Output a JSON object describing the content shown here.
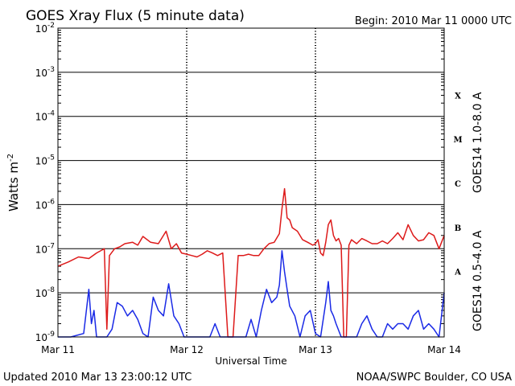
{
  "chart_data": {
    "type": "line",
    "title": "GOES Xray Flux (5 minute data)",
    "begin_label": "Begin:  2010 Mar 11 0000 UTC",
    "xlabel": "Universal Time",
    "ylabel_main": "Watts m",
    "ylabel_exp": "-2",
    "footer_left": "Updated 2010 Mar 13 23:00:12 UTC",
    "footer_right": "NOAA/SWPC Boulder, CO USA",
    "x_ticks": [
      "Mar 11",
      "Mar 12",
      "Mar 13",
      "Mar 14"
    ],
    "y_scale": "log",
    "ylim": [
      "1e-9",
      "1e-2"
    ],
    "y_ticks": [
      {
        "base": "10",
        "exp": "-2"
      },
      {
        "base": "10",
        "exp": "-3"
      },
      {
        "base": "10",
        "exp": "-4"
      },
      {
        "base": "10",
        "exp": "-5"
      },
      {
        "base": "10",
        "exp": "-6"
      },
      {
        "base": "10",
        "exp": "-7"
      },
      {
        "base": "10",
        "exp": "-8"
      },
      {
        "base": "10",
        "exp": "-9"
      }
    ],
    "flare_classes": [
      "X",
      "M",
      "C",
      "B",
      "A"
    ],
    "grid": true,
    "series": [
      {
        "name": "GOES14 1.0-8.0 A",
        "color": "#dd1a1a",
        "x": [
          0,
          0.08,
          0.16,
          0.24,
          0.3,
          0.36,
          0.38,
          0.4,
          0.44,
          0.48,
          0.52,
          0.58,
          0.62,
          0.66,
          0.72,
          0.78,
          0.84,
          0.88,
          0.92,
          0.96,
          1.0,
          1.04,
          1.08,
          1.12,
          1.16,
          1.2,
          1.24,
          1.28,
          1.32,
          1.36,
          1.4,
          1.44,
          1.48,
          1.52,
          1.56,
          1.6,
          1.64,
          1.68,
          1.72,
          1.74,
          1.76,
          1.78,
          1.8,
          1.82,
          1.86,
          1.9,
          1.94,
          1.98,
          2.0,
          2.02,
          2.04,
          2.06,
          2.08,
          2.1,
          2.12,
          2.14,
          2.16,
          2.18,
          2.2,
          2.22,
          2.24,
          2.26,
          2.28,
          2.32,
          2.36,
          2.4,
          2.44,
          2.48,
          2.52,
          2.56,
          2.6,
          2.64,
          2.68,
          2.72,
          2.76,
          2.8,
          2.84,
          2.88,
          2.92,
          2.96,
          3.0
        ],
        "y": [
          "4.0e-8",
          "5.0e-8",
          "6.5e-8",
          "6.0e-8",
          "8.0e-8",
          "1.0e-7",
          "1.5e-9",
          "7.0e-8",
          "1.0e-7",
          "1.1e-7",
          "1.3e-7",
          "1.4e-7",
          "1.2e-7",
          "1.9e-7",
          "1.4e-7",
          "1.3e-7",
          "2.5e-7",
          "1.0e-7",
          "1.3e-7",
          "8.0e-8",
          "7.5e-8",
          "7.0e-8",
          "6.5e-8",
          "7.5e-8",
          "9.0e-8",
          "8.0e-8",
          "7.0e-8",
          "8.0e-8",
          "1.0e-9",
          "1.0e-9",
          "7.0e-8",
          "7.0e-8",
          "7.5e-8",
          "7.0e-8",
          "7.0e-8",
          "1.0e-7",
          "1.3e-7",
          "1.4e-7",
          "2.2e-7",
          "8.0e-7",
          "2.3e-6",
          "5.0e-7",
          "4.5e-7",
          "3.0e-7",
          "2.5e-7",
          "1.6e-7",
          "1.4e-7",
          "1.2e-7",
          "1.3e-7",
          "1.6e-7",
          "8.0e-8",
          "7.0e-8",
          "1.4e-7",
          "3.5e-7",
          "4.5e-7",
          "2.0e-7",
          "1.5e-7",
          "1.7e-7",
          "1.2e-7",
          "1.0e-9",
          "1.0e-9",
          "1.2e-7",
          "1.6e-7",
          "1.3e-7",
          "1.7e-7",
          "1.5e-7",
          "1.3e-7",
          "1.3e-7",
          "1.5e-7",
          "1.3e-7",
          "1.7e-7",
          "2.3e-7",
          "1.6e-7",
          "3.5e-7",
          "2.0e-7",
          "1.5e-7",
          "1.6e-7",
          "2.3e-7",
          "2.0e-7",
          "1.0e-7",
          "2.0e-7"
        ]
      },
      {
        "name": "GOES14 0.5-4.0 A",
        "color": "#1a2ae6",
        "x": [
          0,
          0.1,
          0.2,
          0.24,
          0.26,
          0.28,
          0.3,
          0.34,
          0.38,
          0.42,
          0.46,
          0.5,
          0.54,
          0.58,
          0.62,
          0.66,
          0.7,
          0.74,
          0.78,
          0.82,
          0.86,
          0.9,
          0.94,
          0.98,
          1.02,
          1.06,
          1.1,
          1.14,
          1.18,
          1.22,
          1.26,
          1.3,
          1.34,
          1.38,
          1.42,
          1.46,
          1.5,
          1.54,
          1.58,
          1.62,
          1.66,
          1.7,
          1.72,
          1.74,
          1.76,
          1.78,
          1.8,
          1.84,
          1.88,
          1.92,
          1.96,
          2.0,
          2.04,
          2.08,
          2.1,
          2.12,
          2.14,
          2.16,
          2.2,
          2.24,
          2.28,
          2.32,
          2.36,
          2.4,
          2.44,
          2.48,
          2.52,
          2.56,
          2.6,
          2.64,
          2.68,
          2.72,
          2.76,
          2.8,
          2.84,
          2.88,
          2.92,
          2.96,
          3.0
        ],
        "y": [
          "1.0e-9",
          "1.0e-9",
          "1.2e-9",
          "1.2e-8",
          "2.0e-9",
          "4.0e-9",
          "1.0e-9",
          "1.0e-9",
          "1.0e-9",
          "1.5e-9",
          "6.0e-9",
          "5.0e-9",
          "3.0e-9",
          "4.0e-9",
          "2.5e-9",
          "1.2e-9",
          "1.0e-9",
          "8.0e-9",
          "4.0e-9",
          "3.0e-9",
          "1.6e-8",
          "3.0e-9",
          "2.0e-9",
          "1.0e-9",
          "1.0e-9",
          "1.0e-9",
          "1.0e-9",
          "1.0e-9",
          "1.0e-9",
          "2.0e-9",
          "1.0e-9",
          "1.0e-9",
          "1.0e-9",
          "1.0e-9",
          "1.0e-9",
          "1.0e-9",
          "2.5e-9",
          "1.0e-9",
          "4.0e-9",
          "1.2e-8",
          "6.0e-9",
          "8.0e-9",
          "1.5e-8",
          "9.0e-8",
          "3.0e-8",
          "1.2e-8",
          "5.0e-9",
          "3.0e-9",
          "1.0e-9",
          "3.0e-9",
          "4.0e-9",
          "1.2e-9",
          "1.0e-9",
          "6.0e-9",
          "1.8e-8",
          "4.0e-9",
          "3.0e-9",
          "2.0e-9",
          "1.0e-9",
          "1.0e-9",
          "1.0e-9",
          "1.0e-9",
          "2.0e-9",
          "3.0e-9",
          "1.5e-9",
          "1.0e-9",
          "1.0e-9",
          "2.0e-9",
          "1.5e-9",
          "2.0e-9",
          "2.0e-9",
          "1.5e-9",
          "3.0e-9",
          "4.0e-9",
          "1.5e-9",
          "2.0e-9",
          "1.5e-9",
          "1.0e-9",
          "1.0e-8"
        ]
      }
    ]
  }
}
